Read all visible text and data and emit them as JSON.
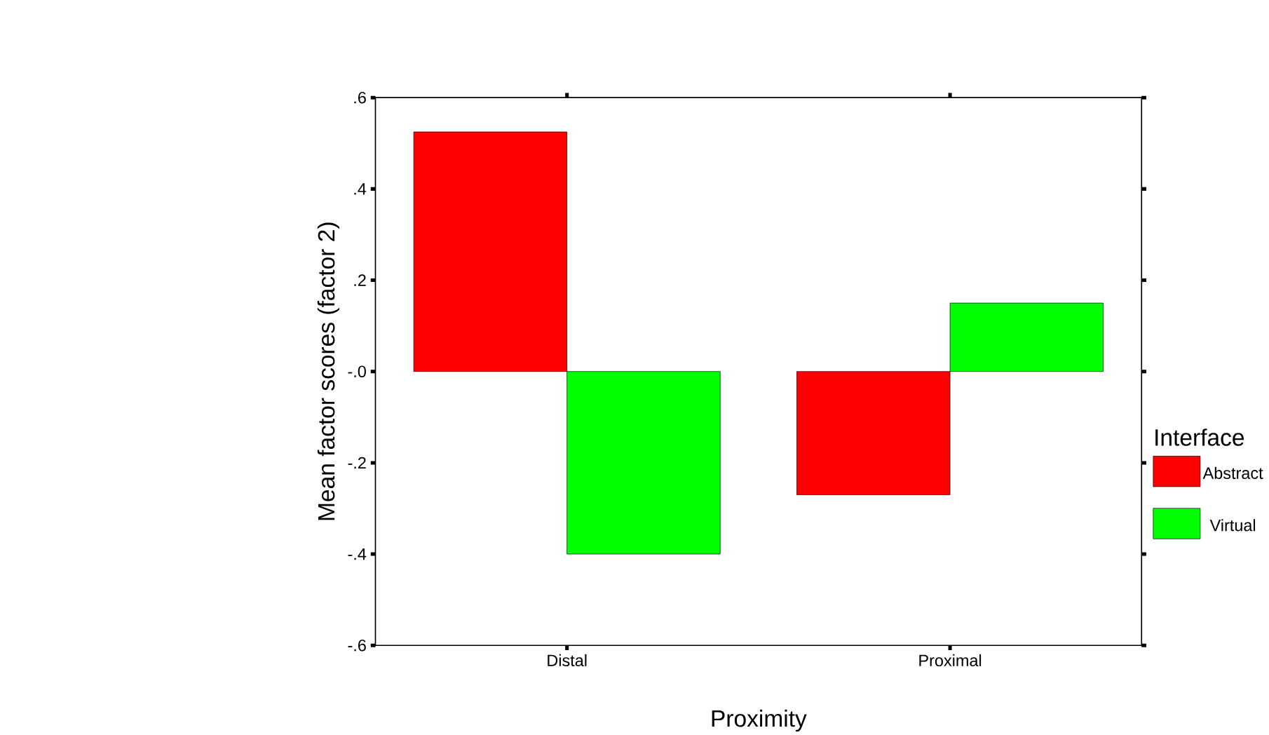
{
  "chart_data": {
    "type": "bar",
    "xlabel": "Proximity",
    "ylabel": "Mean factor scores (factor 2)",
    "legend_title": "Interface",
    "legend": "right",
    "categories": [
      "Distal",
      "Proximal"
    ],
    "series": [
      {
        "name": "Abstract",
        "color": "#ff0000",
        "values": [
          0.525,
          -0.27
        ]
      },
      {
        "name": "Virtual",
        "color": "#00ff00",
        "values": [
          -0.4,
          0.15
        ]
      }
    ],
    "ylim": [
      -0.6,
      0.6
    ],
    "yticks": [
      {
        "value": 0.6,
        "label": ".6"
      },
      {
        "value": 0.4,
        "label": ".4"
      },
      {
        "value": 0.2,
        "label": ".2"
      },
      {
        "value": 0.0,
        "label": "-.0"
      },
      {
        "value": -0.2,
        "label": "-.2"
      },
      {
        "value": -0.4,
        "label": "-.4"
      },
      {
        "value": -0.6,
        "label": "-.6"
      }
    ]
  }
}
